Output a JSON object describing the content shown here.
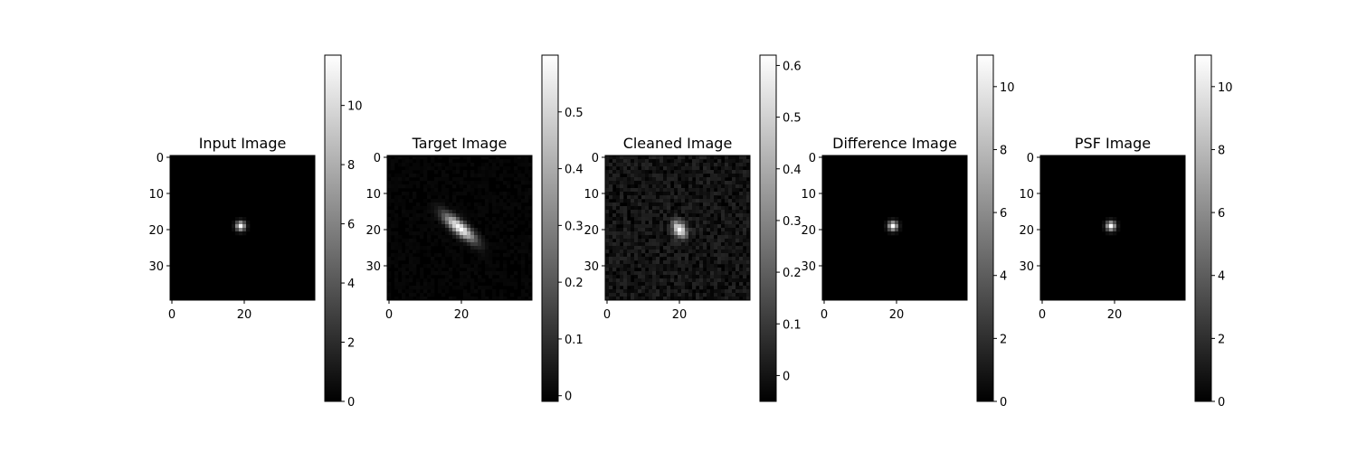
{
  "chart_data": [
    {
      "type": "heatmap",
      "title": "Input Image",
      "colormap": "gray",
      "image_size": 40,
      "xticks": [
        0,
        20
      ],
      "yticks": [
        0,
        10,
        20,
        30
      ],
      "source": {
        "cx": 19,
        "cy": 19,
        "sx": 0.9,
        "sy": 0.9,
        "rho": 0,
        "peak": 11.5,
        "noise": 0
      },
      "colorbar": {
        "vmin": 0,
        "vmax": 11.7,
        "ticks": [
          0,
          2,
          4,
          6,
          8,
          10
        ]
      }
    },
    {
      "type": "heatmap",
      "title": "Target Image",
      "colormap": "gray",
      "image_size": 40,
      "xticks": [
        0,
        20
      ],
      "yticks": [
        0,
        10,
        20,
        30
      ],
      "source": {
        "cx": 19.5,
        "cy": 19.5,
        "sx": 3.0,
        "sy": 2.6,
        "rho": 0.82,
        "peak": 0.6,
        "noise": 0.012
      },
      "colorbar": {
        "vmin": -0.01,
        "vmax": 0.6,
        "ticks": [
          0.0,
          0.1,
          0.2,
          0.3,
          0.4,
          0.5
        ]
      }
    },
    {
      "type": "heatmap",
      "title": "Cleaned Image",
      "colormap": "gray",
      "image_size": 40,
      "xticks": [
        0,
        20
      ],
      "yticks": [
        0,
        10,
        20,
        30
      ],
      "source": {
        "cx": 20,
        "cy": 20,
        "sx": 1.3,
        "sy": 1.6,
        "rho": 0.3,
        "peak": 0.62,
        "noise": 0.05
      },
      "colorbar": {
        "vmin": -0.05,
        "vmax": 0.62,
        "ticks": [
          0.0,
          0.1,
          0.2,
          0.3,
          0.4,
          0.5,
          0.6
        ]
      }
    },
    {
      "type": "heatmap",
      "title": "Difference Image",
      "colormap": "gray",
      "image_size": 40,
      "xticks": [
        0,
        20
      ],
      "yticks": [
        0,
        10,
        20,
        30
      ],
      "source": {
        "cx": 19,
        "cy": 19,
        "sx": 0.9,
        "sy": 0.9,
        "rho": 0,
        "peak": 11.0,
        "noise": 0
      },
      "colorbar": {
        "vmin": 0,
        "vmax": 11.0,
        "ticks": [
          0,
          2,
          4,
          6,
          8,
          10
        ]
      }
    },
    {
      "type": "heatmap",
      "title": "PSF Image",
      "colormap": "gray",
      "image_size": 40,
      "xticks": [
        0,
        20
      ],
      "yticks": [
        0,
        10,
        20,
        30
      ],
      "source": {
        "cx": 19,
        "cy": 19,
        "sx": 0.9,
        "sy": 0.9,
        "rho": 0,
        "peak": 11.0,
        "noise": 0
      },
      "colorbar": {
        "vmin": 0,
        "vmax": 11.0,
        "ticks": [
          0,
          2,
          4,
          6,
          8,
          10
        ]
      }
    }
  ]
}
